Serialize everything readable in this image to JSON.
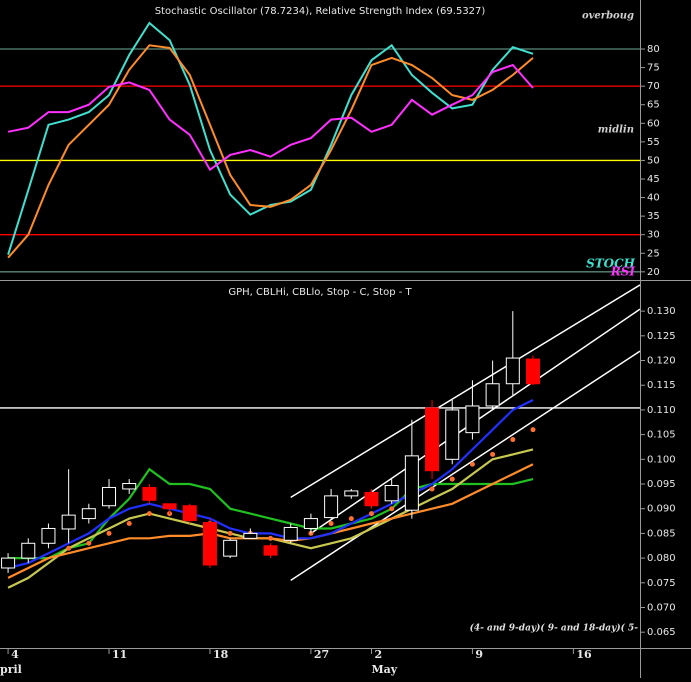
{
  "chart_data": [
    {
      "type": "line",
      "title": "Stochastic Oscillator (78.7234), Relative Strength Index (69.5327)",
      "x": [
        0,
        1,
        2,
        3,
        4,
        5,
        6,
        7,
        8,
        9,
        10,
        11,
        12,
        13,
        14,
        15,
        16,
        17,
        18,
        19,
        20,
        21,
        22,
        23,
        24,
        25,
        26
      ],
      "xlim": [
        -0.4,
        31.3
      ],
      "ylim": [
        17.8,
        93.2
      ],
      "yticks": [
        20,
        25,
        30,
        35,
        40,
        45,
        50,
        55,
        60,
        65,
        70,
        75,
        80
      ],
      "hlines": [
        {
          "value": 80,
          "color": "#5a8a7a"
        },
        {
          "value": 70,
          "color": "#ff0000"
        },
        {
          "value": 50,
          "color": "#ffff00"
        },
        {
          "value": 30,
          "color": "#ff0000"
        },
        {
          "value": 20,
          "color": "#5a8a7a"
        }
      ],
      "series": [
        {
          "name": "STOCH",
          "color": "#40e0d0",
          "values": [
            24.6,
            42,
            59.6,
            61,
            63,
            67.6,
            78.4,
            87,
            82.4,
            70.3,
            52.8,
            40.8,
            35.4,
            38,
            38.9,
            42.1,
            54.2,
            67.6,
            77,
            81,
            73,
            68.2,
            64,
            65,
            74.4,
            80.5,
            78.7
          ]
        },
        {
          "color": "#ff8c28",
          "values": [
            23.8,
            30,
            43.4,
            54.2,
            59.6,
            65,
            74.4,
            81,
            80.3,
            73,
            59.6,
            46.1,
            38,
            37.5,
            39.4,
            43.4,
            52.8,
            63.6,
            75.7,
            77.6,
            75.7,
            72.2,
            67.6,
            66.3,
            69,
            73,
            77.6
          ]
        },
        {
          "name": "RSI",
          "color": "#ff30ff",
          "values": [
            57.7,
            58.8,
            63,
            63,
            65,
            69.8,
            71,
            69,
            61,
            56.9,
            47.5,
            51.5,
            52.8,
            51,
            54.2,
            56,
            61,
            61.5,
            57.7,
            59.6,
            66.3,
            62.3,
            65,
            67.6,
            73.8,
            75.7,
            69.5
          ]
        }
      ],
      "annotations": [
        "overboug",
        "midlin"
      ]
    },
    {
      "type": "candlestick",
      "title": "GPH, CBLHi, CBLlo, Stop - C, Stop - T",
      "x": [
        0,
        1,
        2,
        3,
        4,
        5,
        6,
        7,
        8,
        9,
        10,
        11,
        12,
        13,
        14,
        15,
        16,
        17,
        18,
        19,
        20,
        21,
        22,
        23,
        24,
        25,
        26
      ],
      "xlim": [
        -0.4,
        31.3
      ],
      "ylim": [
        0.0618,
        0.1361
      ],
      "yticks": [
        {
          "value": 0.065,
          "label": "0.065"
        },
        {
          "value": 0.07,
          "label": "0.070"
        },
        {
          "value": 0.075,
          "label": "0.075"
        },
        {
          "value": 0.08,
          "label": "0.080"
        },
        {
          "value": 0.085,
          "label": "0.085"
        },
        {
          "value": 0.09,
          "label": "0.090"
        },
        {
          "value": 0.095,
          "label": "0.095"
        },
        {
          "value": 0.1,
          "label": "0.100"
        },
        {
          "value": 0.105,
          "label": "0.105"
        },
        {
          "value": 0.11,
          "label": "0.110"
        },
        {
          "value": 0.115,
          "label": "0.115"
        },
        {
          "value": 0.12,
          "label": "0.120"
        },
        {
          "value": 0.125,
          "label": "0.125"
        },
        {
          "value": 0.13,
          "label": "0.130"
        }
      ],
      "xticks": [
        {
          "value": 0,
          "label": "4"
        },
        {
          "value": 5,
          "label": "11"
        },
        {
          "value": 10,
          "label": "18"
        },
        {
          "value": 15,
          "label": "27"
        },
        {
          "value": 18,
          "label": "2"
        },
        {
          "value": 23,
          "label": "9"
        },
        {
          "value": 28,
          "label": "16"
        }
      ],
      "month_labels": [
        {
          "value": -0.4,
          "label": "pril"
        },
        {
          "value": 18,
          "label": "May"
        }
      ],
      "open": [
        0.078,
        0.08,
        0.083,
        0.0859,
        0.088,
        0.0906,
        0.094,
        0.0943,
        0.091,
        0.0906,
        0.0872,
        0.0804,
        0.084,
        0.0825,
        0.0836,
        0.086,
        0.0882,
        0.0926,
        0.0933,
        0.0916,
        0.0897,
        0.1104,
        0.1,
        0.1054,
        0.1108,
        0.1153,
        0.1203
      ],
      "high": [
        0.081,
        0.084,
        0.087,
        0.098,
        0.091,
        0.096,
        0.096,
        0.095,
        0.091,
        0.091,
        0.088,
        0.084,
        0.086,
        0.083,
        0.087,
        0.089,
        0.094,
        0.094,
        0.094,
        0.096,
        0.108,
        0.112,
        0.112,
        0.116,
        0.12,
        0.13,
        0.121
      ],
      "low": [
        0.077,
        0.079,
        0.082,
        0.083,
        0.087,
        0.09,
        0.093,
        0.091,
        0.089,
        0.087,
        0.078,
        0.08,
        0.084,
        0.08,
        0.083,
        0.085,
        0.088,
        0.092,
        0.09,
        0.091,
        0.088,
        0.096,
        0.099,
        0.104,
        0.11,
        0.113,
        0.115
      ],
      "close": [
        0.08,
        0.083,
        0.086,
        0.0887,
        0.09,
        0.0943,
        0.0951,
        0.0917,
        0.09,
        0.0876,
        0.0786,
        0.0836,
        0.085,
        0.0806,
        0.0862,
        0.088,
        0.0926,
        0.0936,
        0.0906,
        0.0947,
        0.1007,
        0.0977,
        0.11,
        0.1108,
        0.1153,
        0.1205,
        0.1153
      ],
      "up_color": "#ffffff",
      "down_color": "#ff0000",
      "series": [
        {
          "color": "#20c020",
          "values": [
            0.08,
            0.08,
            0.08,
            0.082,
            0.083,
            0.088,
            0.092,
            0.098,
            0.095,
            0.095,
            0.094,
            0.09,
            0.089,
            0.088,
            0.087,
            0.086,
            0.086,
            0.087,
            0.088,
            0.09,
            0.094,
            0.095,
            0.095,
            0.095,
            0.095,
            0.095,
            0.096
          ]
        },
        {
          "color": "#c8c850",
          "values": [
            0.074,
            0.076,
            0.079,
            0.082,
            0.084,
            0.086,
            0.088,
            0.089,
            0.088,
            0.087,
            0.086,
            0.085,
            0.084,
            0.084,
            0.083,
            0.082,
            0.083,
            0.084,
            0.086,
            0.088,
            0.09,
            0.092,
            0.094,
            0.097,
            0.1,
            0.101,
            0.102
          ]
        },
        {
          "color": "#ff8c28",
          "values": [
            0.076,
            0.078,
            0.08,
            0.081,
            0.082,
            0.083,
            0.084,
            0.084,
            0.0845,
            0.0845,
            0.085,
            0.084,
            0.084,
            0.084,
            0.0835,
            0.084,
            0.085,
            0.086,
            0.087,
            0.088,
            0.089,
            0.09,
            0.091,
            0.093,
            0.095,
            0.097,
            0.099
          ]
        },
        {
          "color": "#2030ff",
          "values": [
            0.078,
            0.079,
            0.081,
            0.083,
            0.085,
            0.088,
            0.09,
            0.091,
            0.09,
            0.089,
            0.088,
            0.086,
            0.085,
            0.085,
            0.084,
            0.084,
            0.085,
            0.087,
            0.089,
            0.091,
            0.093,
            0.095,
            0.098,
            0.102,
            0.106,
            0.11,
            0.112
          ]
        },
        {
          "color": "#ff7030",
          "markers": true,
          "values": [
            null,
            null,
            null,
            0.082,
            0.083,
            0.085,
            0.087,
            0.089,
            0.089,
            0.088,
            0.087,
            0.085,
            0.085,
            0.084,
            0.084,
            0.085,
            0.087,
            0.088,
            0.089,
            0.09,
            0.092,
            0.094,
            0.096,
            0.099,
            0.101,
            0.104,
            0.106
          ]
        }
      ],
      "trendlines": [
        {
          "color": "#ffffff",
          "x": [
            14,
            31.3
          ],
          "values": [
            0.0923,
            0.1353
          ]
        },
        {
          "color": "#ffffff",
          "x": [
            15,
            31.3
          ],
          "values": [
            0.085,
            0.1304
          ]
        },
        {
          "color": "#ffffff",
          "x": [
            14,
            31.3
          ],
          "values": [
            0.0755,
            0.1219
          ]
        }
      ],
      "hlines": [
        {
          "value": 0.1104,
          "color": "#ffffff"
        }
      ],
      "annotations": [
        "(4- and 9-day)( 9- and 18-day)( 5-"
      ]
    }
  ]
}
